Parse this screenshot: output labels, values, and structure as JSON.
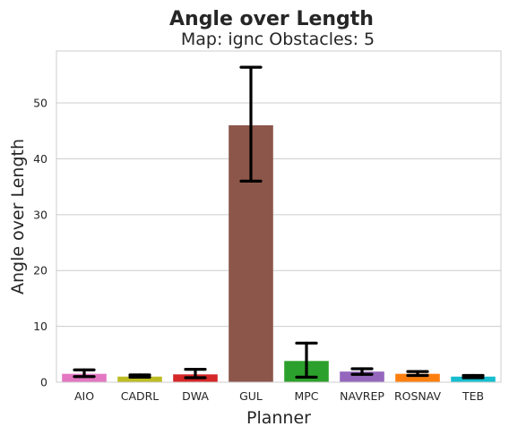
{
  "chart_data": {
    "type": "bar",
    "title": "Angle over Length",
    "subtitle": "Map: ignc Obstacles: 5",
    "xlabel": "Planner",
    "ylabel": "Angle over Length",
    "categories": [
      "AIO",
      "CADRL",
      "DWA",
      "GUL",
      "MPC",
      "NAVREP",
      "ROSNAV",
      "TEB"
    ],
    "values": [
      1.5,
      1.0,
      1.4,
      46.0,
      3.8,
      1.9,
      1.5,
      1.0
    ],
    "error_low": [
      1.0,
      0.9,
      0.8,
      36.0,
      0.9,
      1.4,
      1.2,
      0.8
    ],
    "error_high": [
      2.2,
      1.3,
      2.3,
      56.4,
      7.0,
      2.4,
      1.9,
      1.2
    ],
    "colors": [
      "#e377c2",
      "#bcbd22",
      "#d62728",
      "#8c564b",
      "#2ca02c",
      "#9467bd",
      "#ff7f0e",
      "#17becf"
    ],
    "yticks": [
      0,
      10,
      20,
      30,
      40,
      50
    ],
    "ylim": [
      0,
      59.3
    ],
    "grid": true,
    "grid_axis": "y",
    "error_bar_color": "#000000"
  }
}
